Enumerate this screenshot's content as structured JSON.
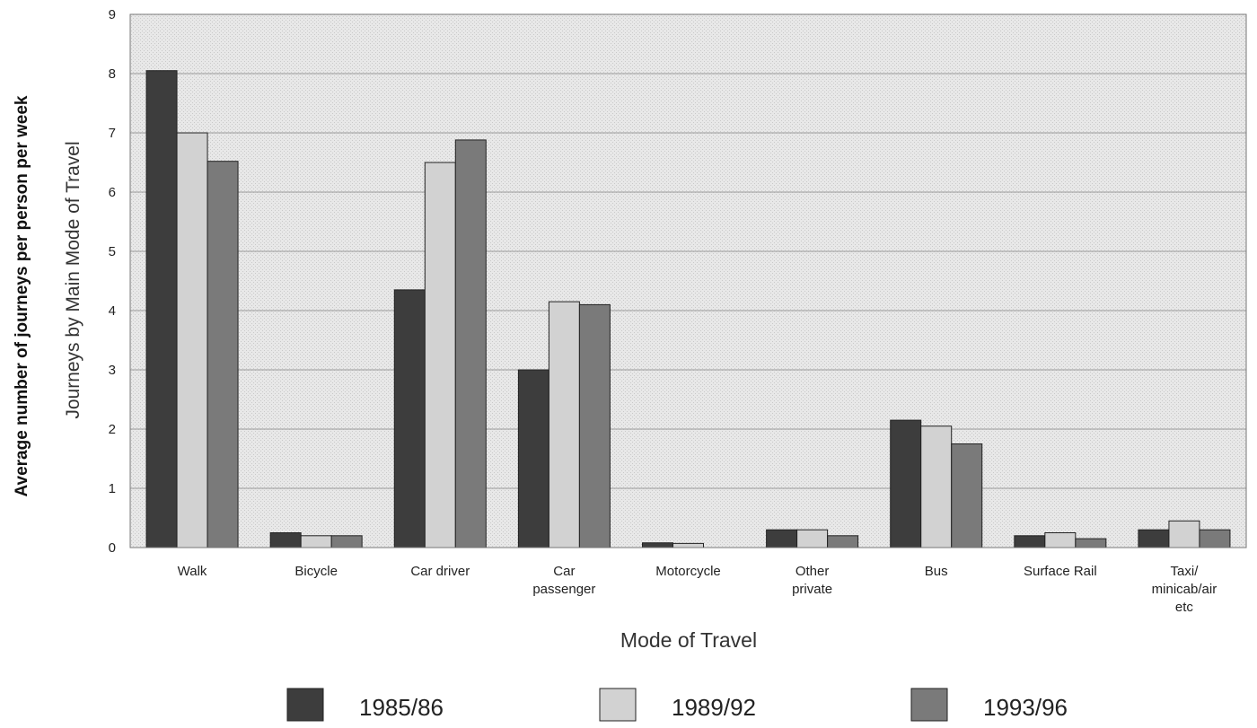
{
  "chart_data": {
    "type": "bar",
    "xlabel": "Mode of Travel",
    "ylabel": "Average number of journeys per person per week",
    "ylabel_inner": "Journeys by Main Mode of Travel",
    "ylim": [
      0,
      9
    ],
    "yticks": [
      "0",
      "1",
      "2",
      "3",
      "4",
      "5",
      "6",
      "7",
      "8",
      "9"
    ],
    "grid": true,
    "legend_position": "bottom",
    "categories": [
      "Walk",
      "Bicycle",
      "Car driver",
      "Car passenger",
      "Motorcycle",
      "Other private",
      "Bus",
      "Surface Rail",
      "Taxi/ minicab/air etc"
    ],
    "category_lines": [
      [
        "Walk"
      ],
      [
        "Bicycle"
      ],
      [
        "Car driver"
      ],
      [
        "Car",
        "passenger"
      ],
      [
        "Motorcycle"
      ],
      [
        "Other",
        "private"
      ],
      [
        "Bus"
      ],
      [
        "Surface Rail"
      ],
      [
        "Taxi/",
        "minicab/air",
        "etc"
      ]
    ],
    "series": [
      {
        "name": "1985/86",
        "color": "#3d3d3d",
        "values": [
          8.05,
          0.25,
          4.35,
          3.0,
          0.08,
          0.3,
          2.15,
          0.2,
          0.3
        ]
      },
      {
        "name": "1989/92",
        "color": "#d2d2d2",
        "values": [
          7.0,
          0.2,
          6.5,
          4.15,
          0.07,
          0.3,
          2.05,
          0.25,
          0.45
        ]
      },
      {
        "name": "1993/96",
        "color": "#7a7a7a",
        "values": [
          6.52,
          0.2,
          6.88,
          4.1,
          0.0,
          0.2,
          1.75,
          0.15,
          0.3
        ]
      }
    ],
    "plot_background": "#e6e6e6"
  }
}
